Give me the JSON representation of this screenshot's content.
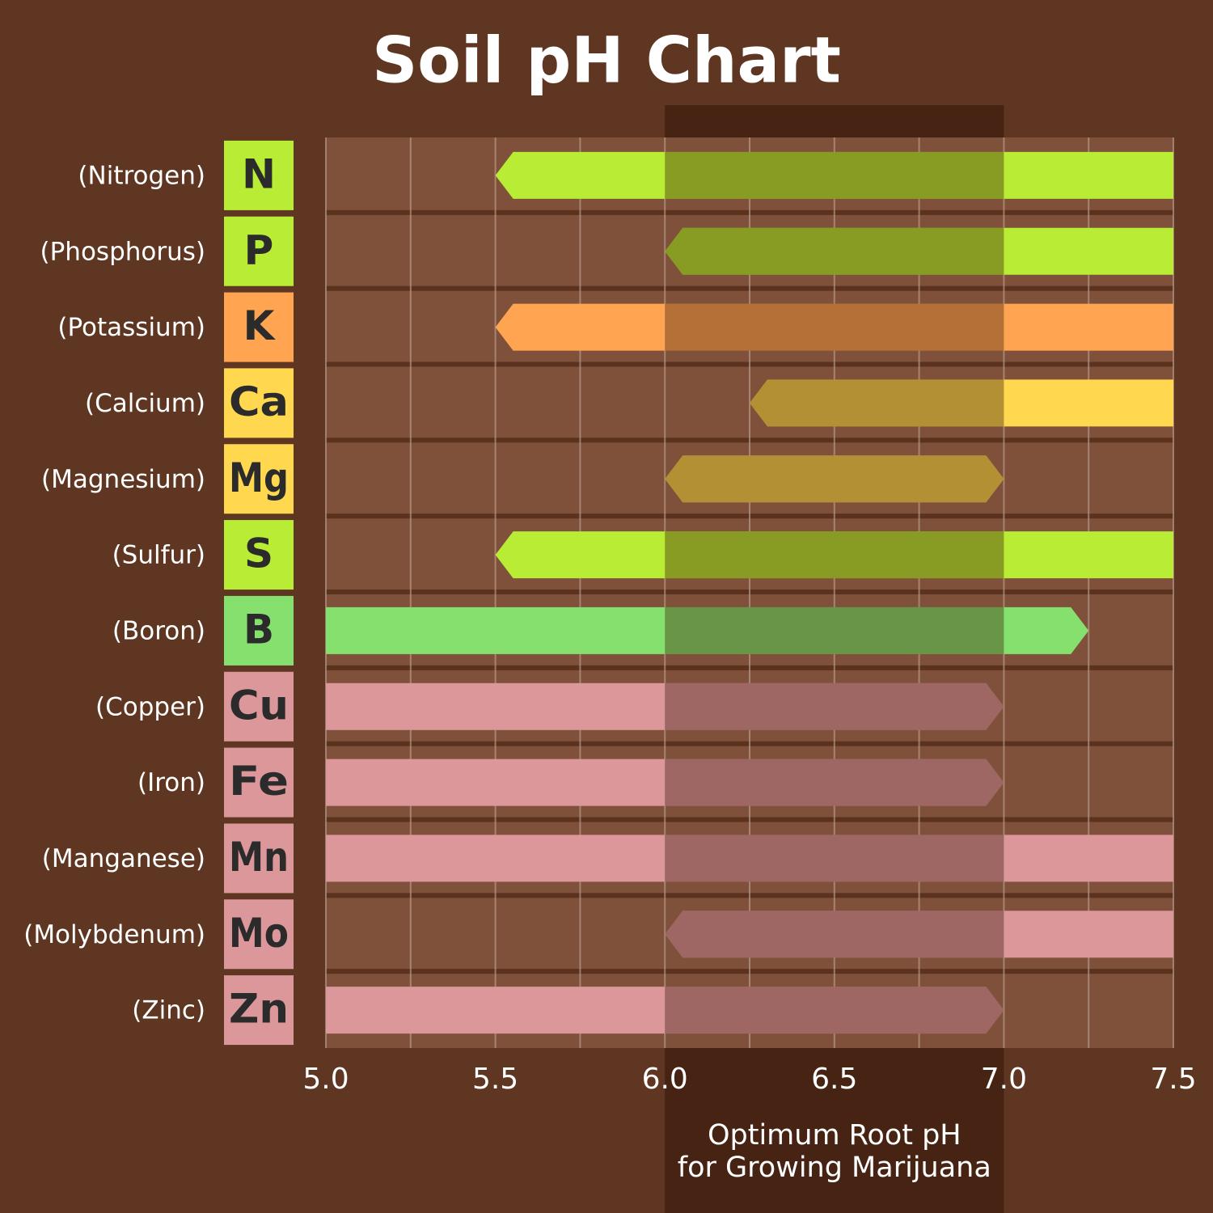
{
  "chart_data": {
    "type": "range-bar",
    "title": "Soil pH Chart",
    "categories": [
      "(Nitrogen)",
      "(Phosphorus)",
      "(Potassium)",
      "(Calcium)",
      "(Magnesium)",
      "(Sulfur)",
      "(Boron)",
      "(Copper)",
      "(Iron)",
      "(Manganese)",
      "(Molybdenum)",
      "(Zinc)"
    ],
    "symbols": [
      "N",
      "P",
      "K",
      "Ca",
      "Mg",
      "S",
      "B",
      "Cu",
      "Fe",
      "Mn",
      "Mo",
      "Zn"
    ],
    "start": [
      5.5,
      6.0,
      5.5,
      6.25,
      6.0,
      5.5,
      5.0,
      5.0,
      5.0,
      5.0,
      6.0,
      5.0
    ],
    "end": [
      7.5,
      7.5,
      7.5,
      7.5,
      7.0,
      7.5,
      7.25,
      7.0,
      7.0,
      7.5,
      7.5,
      7.0
    ],
    "colors": [
      "#b9ec35",
      "#b9ec35",
      "#ffa552",
      "#ffd84f",
      "#ffd84f",
      "#b9ec35",
      "#86e06d",
      "#dc979a",
      "#dc979a",
      "#dc979a",
      "#dc979a",
      "#dc979a"
    ],
    "xlim": [
      5.0,
      7.5
    ],
    "xticks": [
      {
        "value": 5.0,
        "label": "5.0"
      },
      {
        "value": 5.5,
        "label": "5.5"
      },
      {
        "value": 6.0,
        "label": "6.0"
      },
      {
        "value": 6.5,
        "label": "6.5"
      },
      {
        "value": 7.0,
        "label": "7.0"
      },
      {
        "value": 7.5,
        "label": "7.5"
      }
    ],
    "xminorticks": [
      5.25,
      5.75,
      6.25,
      6.75,
      7.25
    ],
    "grid": true,
    "highlight": {
      "range": [
        6.0,
        7.0
      ],
      "label": [
        "Optimum Root pH",
        "for Growing Marijuana"
      ]
    }
  }
}
